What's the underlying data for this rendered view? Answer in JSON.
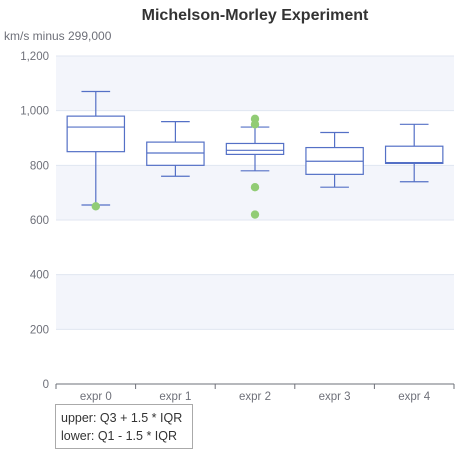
{
  "chart_data": {
    "type": "boxplot",
    "title": "Michelson-Morley Experiment",
    "ylabel": "km/s minus 299,000",
    "xlabel": "",
    "ylim": [
      0,
      1200
    ],
    "yticks": [
      0,
      200,
      400,
      600,
      800,
      1000,
      1200
    ],
    "ytick_labels": [
      "0",
      "200",
      "400",
      "600",
      "800",
      "1,000",
      "1,200"
    ],
    "categories": [
      "expr 0",
      "expr 1",
      "expr 2",
      "expr 3",
      "expr 4"
    ],
    "boxes": [
      {
        "category": "expr 0",
        "min": 655,
        "q1": 850,
        "median": 940,
        "q3": 980,
        "max": 1070
      },
      {
        "category": "expr 1",
        "min": 760,
        "q1": 800,
        "median": 845,
        "q3": 885,
        "max": 960
      },
      {
        "category": "expr 2",
        "min": 780,
        "q1": 840,
        "median": 855,
        "q3": 880,
        "max": 940
      },
      {
        "category": "expr 3",
        "min": 720,
        "q1": 767,
        "median": 815,
        "q3": 865,
        "max": 920
      },
      {
        "category": "expr 4",
        "min": 740,
        "q1": 807,
        "median": 810,
        "q3": 870,
        "max": 950
      }
    ],
    "outliers": [
      {
        "category": "expr 0",
        "value": 650
      },
      {
        "category": "expr 2",
        "value": 970
      },
      {
        "category": "expr 2",
        "value": 950
      },
      {
        "category": "expr 2",
        "value": 720
      },
      {
        "category": "expr 2",
        "value": 620
      }
    ],
    "grid": true,
    "banded_background": true,
    "colors": {
      "box": "#5470c6",
      "outlier": "#91cc75",
      "band": "#f3f5fb",
      "gridline": "#e0e6f1",
      "axis": "#6e7079",
      "title": "#333333"
    }
  },
  "note": {
    "line1": "upper: Q3 + 1.5 * IQR",
    "line2": "lower: Q1 - 1.5 * IQR"
  }
}
